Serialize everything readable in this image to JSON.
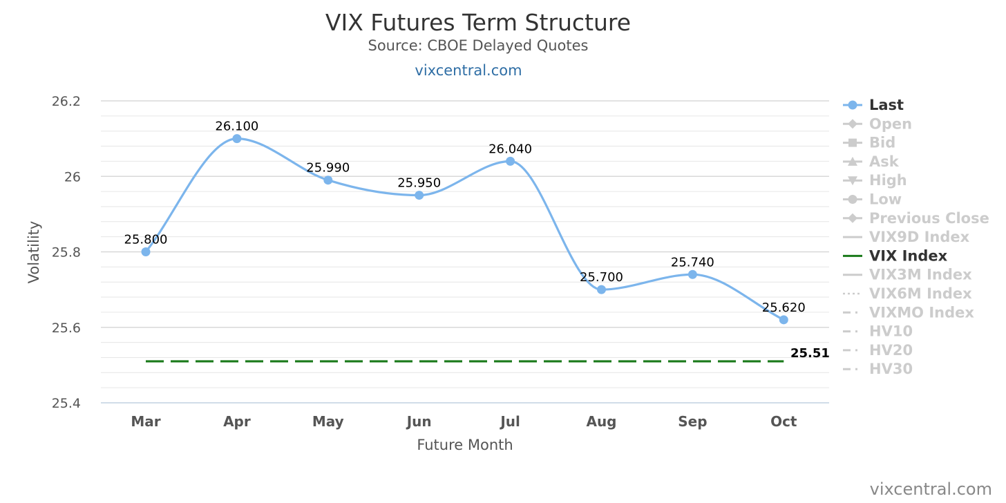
{
  "chart_data": {
    "type": "line",
    "title": "VIX Futures Term Structure",
    "subtitle": "Source: CBOE Delayed Quotes",
    "link": "vixcentral.com",
    "xlabel": "Future Month",
    "ylabel": "Volatility",
    "categories": [
      "Mar",
      "Apr",
      "May",
      "Jun",
      "Jul",
      "Aug",
      "Sep",
      "Oct"
    ],
    "ylim": [
      25.4,
      26.2
    ],
    "yticks": [
      "25.4",
      "25.6",
      "25.8",
      "26",
      "26.2"
    ],
    "grid": true,
    "series": [
      {
        "name": "Last",
        "values": [
          25.8,
          26.1,
          25.99,
          25.95,
          26.04,
          25.7,
          25.74,
          25.62
        ],
        "labels": [
          "25.800",
          "26.100",
          "25.990",
          "25.950",
          "26.040",
          "25.700",
          "25.740",
          "25.620"
        ],
        "color": "#7cb5ec",
        "style": "spline-markers"
      },
      {
        "name": "VIX Index",
        "value": 25.51,
        "label": "25.51",
        "color": "#1a7a1a",
        "style": "dashed"
      }
    ],
    "legend": {
      "position": "right",
      "items": [
        {
          "label": "Last",
          "active": true,
          "symbol": "line-circle",
          "color": "#7cb5ec"
        },
        {
          "label": "Open",
          "active": false,
          "symbol": "line-diamond"
        },
        {
          "label": "Bid",
          "active": false,
          "symbol": "line-square"
        },
        {
          "label": "Ask",
          "active": false,
          "symbol": "line-triangle"
        },
        {
          "label": "High",
          "active": false,
          "symbol": "line-triangle-down"
        },
        {
          "label": "Low",
          "active": false,
          "symbol": "line-circle"
        },
        {
          "label": "Previous Close",
          "active": false,
          "symbol": "line-diamond"
        },
        {
          "label": "VIX9D Index",
          "active": false,
          "symbol": "line"
        },
        {
          "label": "VIX Index",
          "active": true,
          "symbol": "line",
          "color": "#1a7a1a"
        },
        {
          "label": "VIX3M Index",
          "active": false,
          "symbol": "line"
        },
        {
          "label": "VIX6M Index",
          "active": false,
          "symbol": "dotted"
        },
        {
          "label": "VIXMO Index",
          "active": false,
          "symbol": "dash-dot"
        },
        {
          "label": "HV10",
          "active": false,
          "symbol": "dash-dot"
        },
        {
          "label": "HV20",
          "active": false,
          "symbol": "dash-dot"
        },
        {
          "label": "HV30",
          "active": false,
          "symbol": "dash-dot"
        }
      ]
    },
    "credit": "vixcentral.com"
  }
}
